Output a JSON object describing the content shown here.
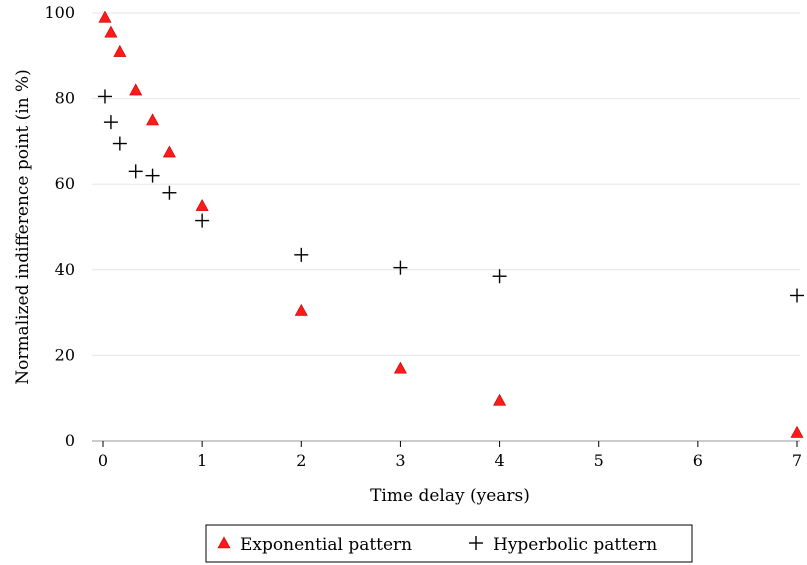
{
  "chart_data": {
    "type": "scatter",
    "title": "",
    "xlabel": "Time delay (years)",
    "ylabel": "Normalized indifference point (in %)",
    "xlim": [
      0,
      7
    ],
    "ylim": [
      0,
      100
    ],
    "xticks": [
      "0",
      "1",
      "2",
      "3",
      "4",
      "5",
      "6",
      "7"
    ],
    "yticks": [
      "0",
      "20",
      "40",
      "60",
      "80",
      "100"
    ],
    "grid": "horizontal",
    "legend_position": "bottom",
    "series": [
      {
        "name": "Exponential pattern",
        "marker": "triangle",
        "color": "#ff1a1a",
        "x": [
          0.02,
          0.08,
          0.17,
          0.33,
          0.5,
          0.67,
          1,
          2,
          3,
          4,
          7
        ],
        "y": [
          99,
          95.5,
          91,
          82,
          75,
          67.5,
          55,
          30.5,
          17,
          9.5,
          2
        ]
      },
      {
        "name": "Hyperbolic pattern",
        "marker": "plus",
        "color": "#000000",
        "x": [
          0.02,
          0.08,
          0.17,
          0.33,
          0.5,
          0.67,
          1,
          2,
          3,
          4,
          7
        ],
        "y": [
          80.5,
          74.5,
          69.5,
          63,
          62,
          58,
          51.5,
          43.5,
          40.5,
          38.5,
          34
        ]
      }
    ]
  }
}
